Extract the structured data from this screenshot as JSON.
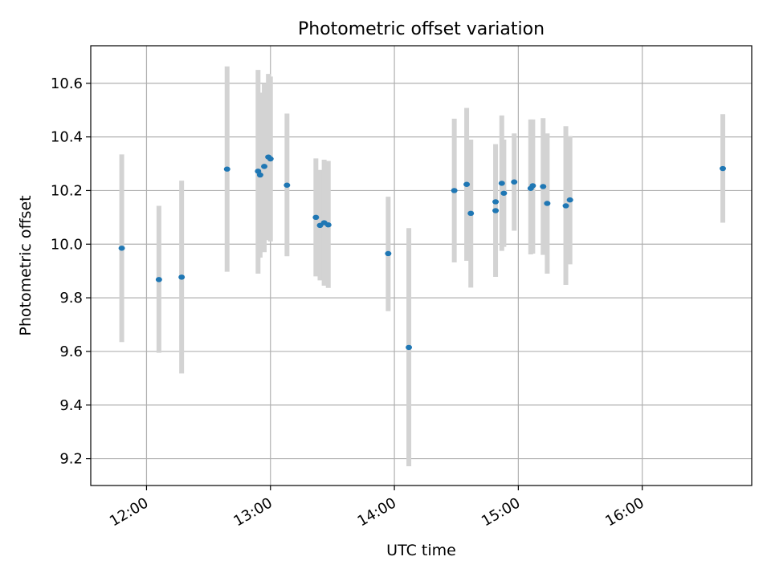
{
  "chart_data": {
    "type": "scatter",
    "title": "Photometric offset variation",
    "xlabel": "UTC time",
    "ylabel": "Photometric offset",
    "x_unit": "UTC time of day",
    "xlim": [
      "11:33",
      "16:53"
    ],
    "ylim": [
      9.1,
      10.74
    ],
    "x_ticks": [
      "12:00",
      "13:00",
      "14:00",
      "15:00",
      "16:00"
    ],
    "y_ticks": [
      "9.2",
      "9.4",
      "9.6",
      "9.8",
      "10.0",
      "10.2",
      "10.4",
      "10.6"
    ],
    "grid": true,
    "legend": "none",
    "series": [
      {
        "points": [
          {
            "x": "11:48",
            "y": 9.985,
            "ylow": 9.635,
            "yhigh": 10.335
          },
          {
            "x": "12:06",
            "y": 9.868,
            "ylow": 9.595,
            "yhigh": 10.143
          },
          {
            "x": "12:17",
            "y": 9.877,
            "ylow": 9.518,
            "yhigh": 10.237
          },
          {
            "x": "12:39",
            "y": 10.28,
            "ylow": 9.897,
            "yhigh": 10.663
          },
          {
            "x": "12:54",
            "y": 10.272,
            "ylow": 9.89,
            "yhigh": 10.65
          },
          {
            "x": "12:55",
            "y": 10.258,
            "ylow": 9.95,
            "yhigh": 10.565
          },
          {
            "x": "12:57",
            "y": 10.29,
            "ylow": 9.97,
            "yhigh": 10.6
          },
          {
            "x": "12:59",
            "y": 10.325,
            "ylow": 10.015,
            "yhigh": 10.635
          },
          {
            "x": "13:00",
            "y": 10.318,
            "ylow": 10.01,
            "yhigh": 10.625
          },
          {
            "x": "13:08",
            "y": 10.22,
            "ylow": 9.955,
            "yhigh": 10.487
          },
          {
            "x": "13:22",
            "y": 10.1,
            "ylow": 9.88,
            "yhigh": 10.32
          },
          {
            "x": "13:24",
            "y": 10.07,
            "ylow": 9.865,
            "yhigh": 10.277
          },
          {
            "x": "13:26",
            "y": 10.08,
            "ylow": 9.845,
            "yhigh": 10.315
          },
          {
            "x": "13:28",
            "y": 10.072,
            "ylow": 9.837,
            "yhigh": 10.31
          },
          {
            "x": "13:57",
            "y": 9.965,
            "ylow": 9.75,
            "yhigh": 10.177
          },
          {
            "x": "14:07",
            "y": 9.615,
            "ylow": 9.172,
            "yhigh": 10.06
          },
          {
            "x": "14:29",
            "y": 10.2,
            "ylow": 9.932,
            "yhigh": 10.468
          },
          {
            "x": "14:35",
            "y": 10.223,
            "ylow": 9.938,
            "yhigh": 10.508
          },
          {
            "x": "14:37",
            "y": 10.115,
            "ylow": 9.838,
            "yhigh": 10.39
          },
          {
            "x": "14:49",
            "y": 10.125,
            "ylow": 9.878,
            "yhigh": 10.373
          },
          {
            "x": "14:49",
            "y": 10.158,
            "ylow": 10.158,
            "yhigh": 10.158
          },
          {
            "x": "14:52",
            "y": 10.227,
            "ylow": 9.975,
            "yhigh": 10.48
          },
          {
            "x": "14:53",
            "y": 10.19,
            "ylow": 9.99,
            "yhigh": 10.39
          },
          {
            "x": "14:58",
            "y": 10.232,
            "ylow": 10.05,
            "yhigh": 10.413
          },
          {
            "x": "15:06",
            "y": 10.208,
            "ylow": 9.962,
            "yhigh": 10.465
          },
          {
            "x": "15:07",
            "y": 10.218,
            "ylow": 9.965,
            "yhigh": 10.465
          },
          {
            "x": "15:12",
            "y": 10.215,
            "ylow": 9.96,
            "yhigh": 10.47
          },
          {
            "x": "15:14",
            "y": 10.152,
            "ylow": 9.89,
            "yhigh": 10.413
          },
          {
            "x": "15:23",
            "y": 10.143,
            "ylow": 9.848,
            "yhigh": 10.44
          },
          {
            "x": "15:25",
            "y": 10.165,
            "ylow": 9.925,
            "yhigh": 10.403
          },
          {
            "x": "16:39",
            "y": 10.282,
            "ylow": 10.08,
            "yhigh": 10.485
          }
        ]
      }
    ],
    "colors": {
      "point": "#1f77b4",
      "errorbar": "#d3d3d3",
      "grid": "#b0b0b0",
      "axes": "#000000"
    }
  }
}
